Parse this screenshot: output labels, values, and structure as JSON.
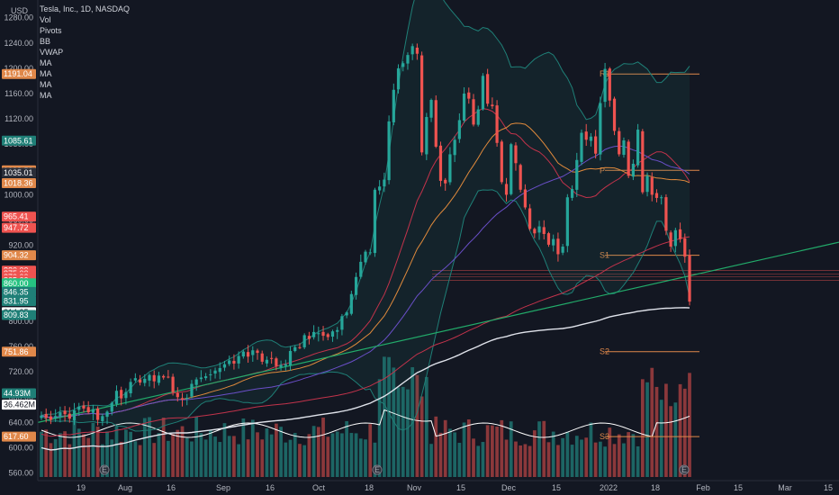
{
  "header": {
    "symbol_title": "Tesla, Inc., 1D, NASDAQ",
    "currency": "USD",
    "indicators": [
      "Vol",
      "Pivots",
      "BB",
      "VWAP",
      "MA",
      "MA",
      "MA",
      "MA"
    ]
  },
  "colors": {
    "background": "#131722",
    "up": "#26a69a",
    "down": "#ef5350",
    "axis_text": "#b2b5be",
    "ma_white": "#e0e3eb",
    "ma_red": "#c2334b",
    "ma_orange": "#e08a3c",
    "ma_purple": "#6a4fc8",
    "bb": "#1f7f77",
    "trendline": "#22ab6a",
    "pivot": "#e0884a"
  },
  "chart_data": {
    "type": "candlestick",
    "y_axis": {
      "ticks": [
        560,
        600,
        640,
        680,
        720,
        760,
        800,
        840,
        880,
        920,
        960,
        1000,
        1040,
        1080,
        1120,
        1160,
        1200,
        1240,
        1280
      ],
      "range": [
        548,
        1308
      ]
    },
    "x_axis": {
      "ticks": [
        "19",
        "Aug",
        "16",
        "Sep",
        "16",
        "Oct",
        "18",
        "Nov",
        "15",
        "Dec",
        "15",
        "2022",
        "18",
        "Feb",
        "15",
        "Mar",
        "15"
      ]
    },
    "price_labels": [
      {
        "value": "1191.04",
        "price": 1191,
        "color": "#e0884a"
      },
      {
        "value": "1085.61",
        "price": 1085.6,
        "color": "#1f7f77"
      },
      {
        "value": "1038.58",
        "price": 1038.6,
        "color": "#e0884a"
      },
      {
        "value": "1035.01",
        "price": 1035,
        "color": "#2a2e39"
      },
      {
        "value": "1018.36",
        "price": 1018.4,
        "color": "#e0884a"
      },
      {
        "value": "965.41",
        "price": 965.4,
        "color": "#ef5350"
      },
      {
        "value": "947.72",
        "price": 947.7,
        "color": "#ef5350"
      },
      {
        "value": "904.32",
        "price": 904.3,
        "color": "#e0884a"
      },
      {
        "value": "880.00",
        "price": 880,
        "color": "#ef5350"
      },
      {
        "value": "875.00",
        "price": 875,
        "color": "#ef5350"
      },
      {
        "value": "870.00",
        "price": 870,
        "color": "#ef5350"
      },
      {
        "value": "865.00",
        "price": 865,
        "color": "#ef5350"
      },
      {
        "value": "860.00",
        "price": 860,
        "color": "#26c281"
      },
      {
        "value": "846.35",
        "price": 846.35,
        "color": "#1f7f77"
      },
      {
        "value": "831.95",
        "price": 831.95,
        "color": "#1f7f77"
      },
      {
        "value": "814.35",
        "price": 814.35,
        "color": "#ffffff"
      },
      {
        "value": "809.83",
        "price": 809.83,
        "color": "#1f7f77"
      },
      {
        "value": "751.86",
        "price": 751.86,
        "color": "#e0884a"
      },
      {
        "value": "44.93M",
        "price": 686,
        "color": "#1f7f77"
      },
      {
        "value": "36.462M",
        "price": 668,
        "color": "#ffffff"
      },
      {
        "value": "617.60",
        "price": 617.6,
        "color": "#e0884a"
      }
    ],
    "pivots": [
      {
        "label": "R1",
        "price": 1191
      },
      {
        "label": "P",
        "price": 1038.6
      },
      {
        "label": "S1",
        "price": 904.3
      },
      {
        "label": "S2",
        "price": 751.9
      },
      {
        "label": "S3",
        "price": 617.6
      }
    ],
    "close": [
      651,
      647,
      644,
      650,
      656,
      653,
      646,
      659,
      665,
      662,
      656,
      661,
      644,
      650,
      657,
      671,
      690,
      678,
      688,
      704,
      710,
      703,
      709,
      715,
      705,
      714,
      711,
      712,
      688,
      680,
      676,
      679,
      701,
      708,
      711,
      713,
      716,
      722,
      726,
      732,
      738,
      733,
      745,
      752,
      744,
      754,
      750,
      736,
      739,
      741,
      729,
      731,
      732,
      753,
      759,
      758,
      778,
      772,
      783,
      781,
      777,
      775,
      784,
      786,
      808,
      814,
      843,
      870,
      894,
      910,
      909,
      1008,
      1013,
      1024,
      1116,
      1166,
      1200,
      1208,
      1221,
      1235,
      1223,
      1067,
      1123,
      1150,
      1076,
      1022,
      1018,
      1064,
      1087,
      1118,
      1160,
      1152,
      1111,
      1135,
      1188,
      1144,
      1140,
      1082,
      1020,
      1000,
      1080,
      1050,
      1008,
      980,
      946,
      939,
      950,
      938,
      921,
      930,
      906,
      918,
      996,
      1009,
      1055,
      1098,
      1087,
      1092,
      1065,
      1145,
      1199,
      1149,
      1101,
      1064,
      1086,
      1030,
      1049,
      1103,
      1004,
      1030,
      1000,
      995,
      996,
      943,
      918,
      944,
      930,
      902,
      831
    ],
    "wick_range": [
      820,
      1240
    ],
    "volume_ylim": [
      0,
      160
    ]
  }
}
